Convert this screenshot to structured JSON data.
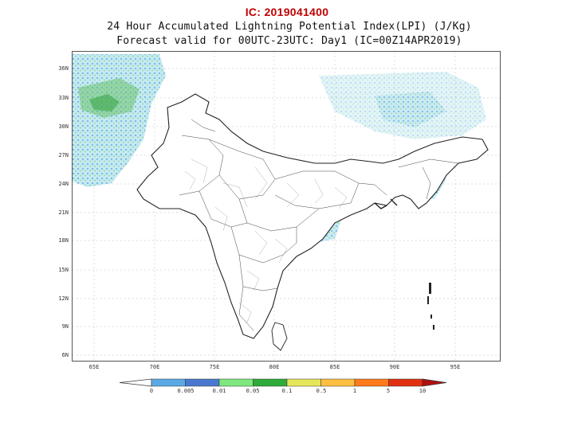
{
  "header": {
    "ic": "IC: 2019041400",
    "title_line1": "24 Hour Accumulated Lightning Potential Index(LPI) (J/Kg)",
    "title_line2": "Forecast valid for 00UTC-23UTC: Day1 (IC=00Z14APR2019)"
  },
  "axes": {
    "lat_ticks": [
      "36N",
      "33N",
      "30N",
      "27N",
      "24N",
      "21N",
      "18N",
      "15N",
      "12N",
      "9N",
      "6N"
    ],
    "lon_ticks": [
      "65E",
      "70E",
      "75E",
      "80E",
      "85E",
      "90E",
      "95E"
    ]
  },
  "legend": {
    "labels": [
      "0",
      "0.005",
      "0.01",
      "0.05",
      "0.1",
      "0.5",
      "1",
      "5",
      "10"
    ],
    "colors": [
      "#ffffff",
      "#5aa9e6",
      "#4a78d0",
      "#7ee87e",
      "#2eab3a",
      "#e6e65a",
      "#ffbf40",
      "#ff7a1a",
      "#e03010",
      "#b01010"
    ]
  },
  "colors": {
    "ic_text": "#c00000",
    "land_outline": "#222222",
    "lpi_low": "#8fd1e8",
    "lpi_mid": "#4fbf6a",
    "lpi_high": "#e07a2a"
  }
}
